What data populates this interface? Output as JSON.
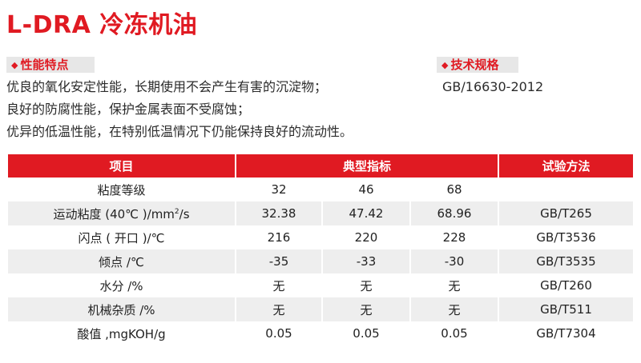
{
  "title": "L-DRA 冷冻机油",
  "features": {
    "label": "性能特点",
    "items": [
      "优良的氧化安定性能，长期使用不会产生有害的沉淀物；",
      "良好的防腐性能，保护金属表面不受腐蚀；",
      "优异的低温性能，在特别低温情况下仍能保持良好的流动性。"
    ]
  },
  "spec": {
    "label": "技术规格",
    "value": "GB/16630-2012"
  },
  "table": {
    "headers": [
      "项目",
      "典型指标",
      "试验方法"
    ],
    "rows": [
      {
        "item": "粘度等级",
        "v1": "32",
        "v2": "46",
        "v3": "68",
        "method": ""
      },
      {
        "item_pre": "运动粘度 (40℃ )/mm",
        "item_sup": "2",
        "item_post": "/s",
        "v1": "32.38",
        "v2": "47.42",
        "v3": "68.96",
        "method": "GB/T265"
      },
      {
        "item": "闪点 ( 开口 )/℃",
        "v1": "216",
        "v2": "220",
        "v3": "228",
        "method": "GB/T3536"
      },
      {
        "item": "倾点 /℃",
        "v1": "-35",
        "v2": "-33",
        "v3": "-30",
        "method": "GB/T3535"
      },
      {
        "item": "水分 /%",
        "v1": "无",
        "v2": "无",
        "v3": "无",
        "method": "GB/T260"
      },
      {
        "item": "机械杂质 /%",
        "v1": "无",
        "v2": "无",
        "v3": "无",
        "method": "GB/T511"
      },
      {
        "item": "酸值 ,mgKOH/g",
        "v1": "0.05",
        "v2": "0.05",
        "v3": "0.05",
        "method": "GB/T7304"
      }
    ]
  }
}
